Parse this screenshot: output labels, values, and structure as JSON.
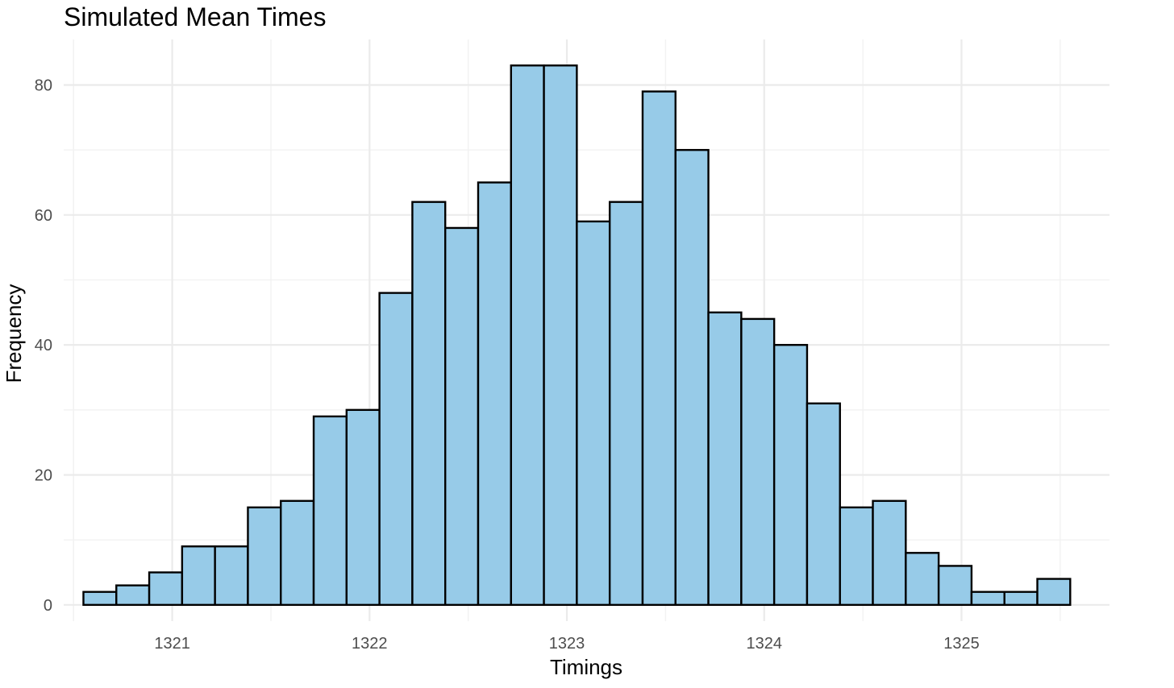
{
  "chart_data": {
    "type": "bar",
    "subtype": "histogram",
    "title": "Simulated Mean Times",
    "xlabel": "Timings",
    "ylabel": "Frequency",
    "xlim": [
      1320.45,
      1325.75
    ],
    "ylim": [
      -2.5,
      87
    ],
    "x_ticks": [
      1321,
      1322,
      1323,
      1324,
      1325
    ],
    "x_tick_labels": [
      "1321",
      "1322",
      "1323",
      "1324",
      "1325"
    ],
    "y_ticks": [
      0,
      20,
      40,
      60,
      80
    ],
    "y_tick_labels": [
      "0",
      "20",
      "40",
      "60",
      "80"
    ],
    "x_minor_ticks": [
      1320.5,
      1321.5,
      1322.5,
      1323.5,
      1324.5,
      1325.5
    ],
    "y_minor_ticks": [
      10,
      30,
      50,
      70
    ],
    "grid": true,
    "bins_start": 1320.55,
    "bin_width": 0.1667,
    "values": [
      2,
      3,
      5,
      9,
      9,
      15,
      16,
      29,
      30,
      48,
      62,
      58,
      65,
      83,
      83,
      59,
      62,
      79,
      70,
      45,
      44,
      40,
      31,
      15,
      16,
      8,
      6,
      2,
      2,
      4
    ],
    "bar_fill": "#97cbe8",
    "bar_edge": "#000000",
    "legend": "none"
  }
}
